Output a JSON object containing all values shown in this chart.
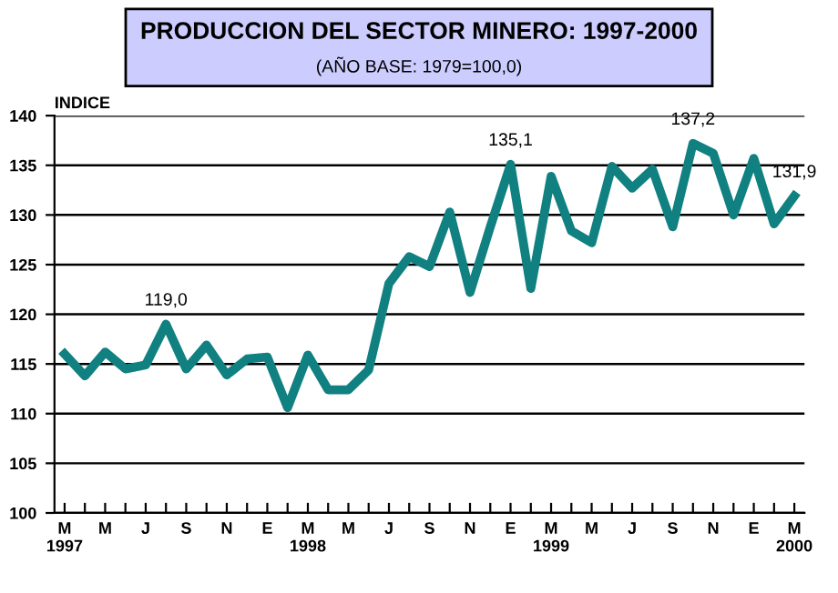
{
  "chart_data": {
    "type": "line",
    "title": "PRODUCCION DEL SECTOR MINERO: 1997-2000",
    "subtitle": "(AÑO BASE: 1979=100,0)",
    "ylabel": "INDICE",
    "categories": [
      "M\n1997",
      null,
      "M",
      null,
      "J",
      null,
      "S",
      null,
      "N",
      null,
      "E",
      null,
      "M\n1998",
      null,
      "M",
      null,
      "J",
      null,
      "S",
      null,
      "N",
      null,
      "E",
      null,
      "M\n1999",
      null,
      "M",
      null,
      "J",
      null,
      "S",
      null,
      "N",
      null,
      "E",
      null,
      "M\n2000"
    ],
    "series": [
      {
        "color": "#118080",
        "values": [
          116.0,
          113.8,
          116.2,
          114.5,
          114.9,
          119.0,
          114.5,
          116.9,
          113.9,
          115.5,
          115.7,
          110.6,
          115.9,
          112.4,
          112.4,
          114.4,
          123.1,
          125.8,
          124.8,
          130.3,
          122.2,
          128.8,
          135.1,
          122.6,
          133.9,
          128.4,
          127.2,
          134.9,
          132.7,
          134.6,
          128.8,
          137.2,
          136.2,
          130.0,
          135.7,
          129.1,
          131.9
        ],
        "value_labels": [
          null,
          null,
          null,
          null,
          null,
          "119,0",
          null,
          null,
          null,
          null,
          null,
          null,
          null,
          null,
          null,
          null,
          null,
          null,
          null,
          null,
          null,
          null,
          "135,1",
          null,
          null,
          null,
          null,
          null,
          null,
          null,
          null,
          "137,2",
          null,
          null,
          null,
          null,
          "131,9"
        ]
      }
    ],
    "ylim": [
      100,
      140
    ],
    "yticks": [
      100,
      105,
      110,
      115,
      120,
      125,
      130,
      135,
      140
    ],
    "grid": "y",
    "marker": "none",
    "line_style": "solid",
    "legend": false
  }
}
